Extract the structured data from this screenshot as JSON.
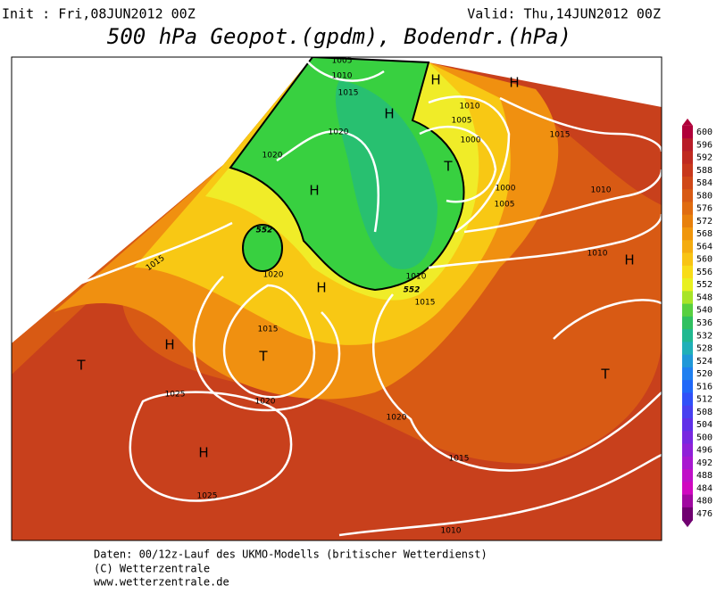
{
  "header": {
    "init": "Init : Fri,08JUN2012 00Z",
    "valid": "Valid: Thu,14JUN2012 00Z",
    "title": "500 hPa Geopot.(gpdm), Bodendr.(hPa)"
  },
  "colorbar": {
    "labels": [
      "600",
      "596",
      "592",
      "588",
      "584",
      "580",
      "576",
      "572",
      "568",
      "564",
      "560",
      "556",
      "552",
      "548",
      "540",
      "536",
      "532",
      "528",
      "524",
      "520",
      "516",
      "512",
      "508",
      "504",
      "500",
      "496",
      "492",
      "488",
      "484",
      "480",
      "476"
    ],
    "colors": [
      "#b0003a",
      "#b81c28",
      "#c02a20",
      "#c8381c",
      "#d04818",
      "#d85a14",
      "#e06c10",
      "#e8800c",
      "#f0960c",
      "#f4ac10",
      "#f8c414",
      "#f8dc18",
      "#e8f020",
      "#a8e428",
      "#58d040",
      "#30c060",
      "#20b890",
      "#20b0b8",
      "#2098d8",
      "#2080f0",
      "#2068f8",
      "#3050f8",
      "#4840f0",
      "#6030e8",
      "#7828e0",
      "#9020d8",
      "#a818d0",
      "#c010c8",
      "#d008c0",
      "#a008a0",
      "#700070"
    ]
  },
  "isobars": [
    "1005",
    "1010",
    "1015",
    "1020",
    "1020",
    "1010",
    "1005",
    "1000",
    "1000",
    "1005",
    "1015",
    "1010",
    "1010",
    "1010",
    "1015",
    "1020",
    "1015",
    "1015",
    "1020",
    "1025",
    "1020",
    "1015",
    "1010",
    "1025"
  ],
  "heights": [
    "552",
    "552"
  ],
  "pressure_centers": [
    "H",
    "H",
    "H",
    "H",
    "H",
    "H",
    "H",
    "H",
    "T",
    "T",
    "T",
    "T"
  ],
  "footer": [
    "Daten: 00/12z-Lauf des UKMO-Modells (britischer Wetterdienst)",
    "(C) Wetterzentrale",
    "www.wetterzentrale.de"
  ]
}
